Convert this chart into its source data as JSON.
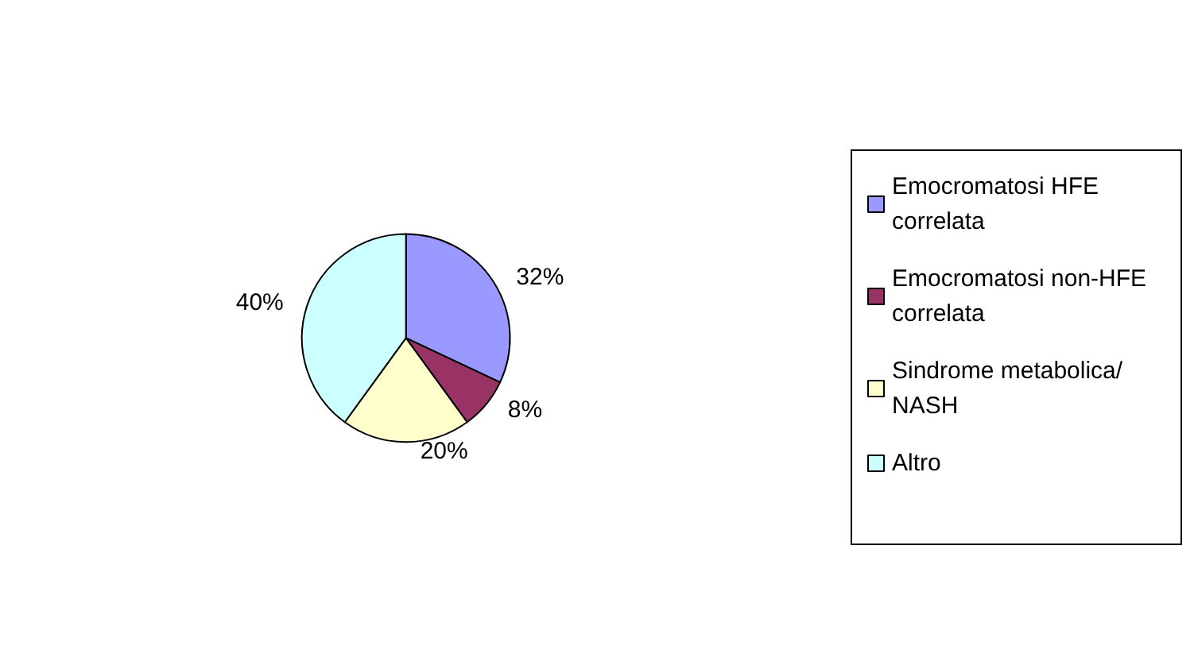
{
  "chart_data": {
    "type": "pie",
    "categories": [
      "Emocromatosi HFE correlata",
      "Emocromatosi non-HFE correlata",
      "Sindrome metabolica/NASH",
      "Altro"
    ],
    "values": [
      32,
      8,
      20,
      40
    ],
    "colors": [
      "#9999ff",
      "#993366",
      "#ffffcc",
      "#ccffff"
    ],
    "value_labels": [
      "32%",
      "8%",
      "20%",
      "40%"
    ],
    "legend": "right"
  }
}
